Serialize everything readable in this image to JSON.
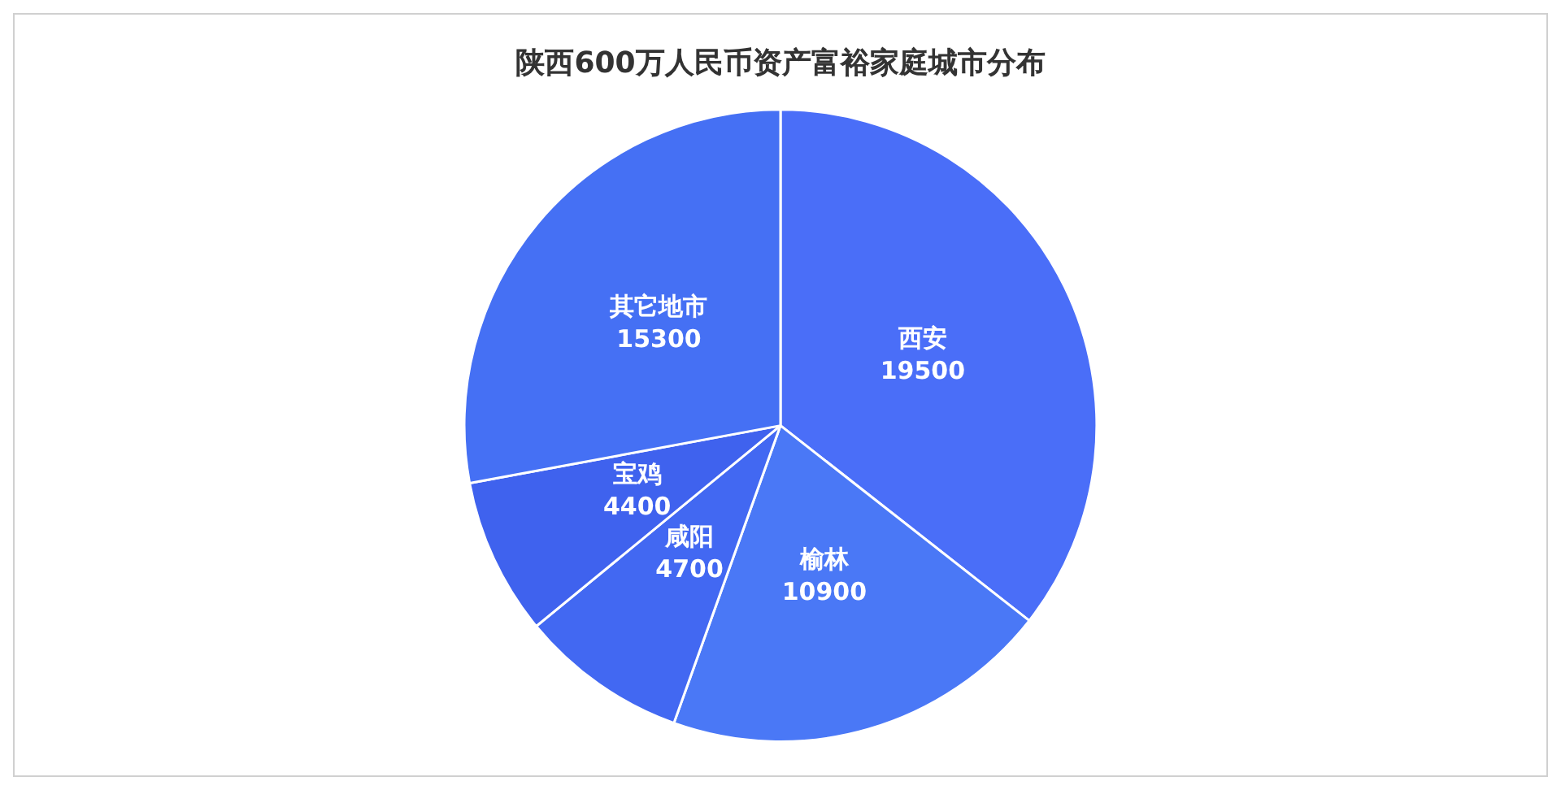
{
  "chart_data": {
    "type": "pie",
    "title": "陕西600万人民币资产富裕家庭城市分布",
    "categories": [
      "西安",
      "榆林",
      "咸阳",
      "宝鸡",
      "其它地市"
    ],
    "values": [
      19500,
      10900,
      4700,
      4400,
      15300
    ],
    "colors": [
      "#4a6ef8",
      "#4a78f6",
      "#4268f2",
      "#3f62ee",
      "#4570f4"
    ],
    "data_labels": true,
    "legend": false
  }
}
